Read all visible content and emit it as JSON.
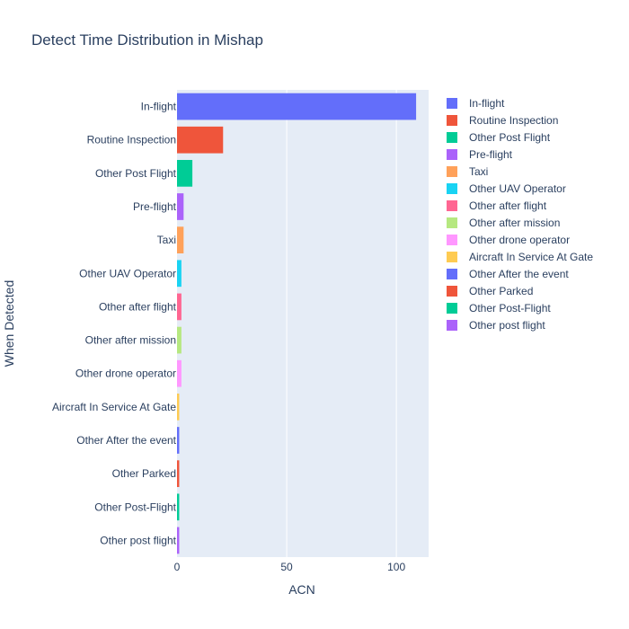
{
  "chart_data": {
    "type": "bar",
    "orientation": "horizontal",
    "title": "Detect Time Distribution in Mishap",
    "xlabel": "ACN",
    "ylabel": "When Detected",
    "xlim": [
      0,
      114.7
    ],
    "xticks": [
      0,
      50,
      100
    ],
    "grid": true,
    "legend_position": "right",
    "categories": [
      "In-flight",
      "Routine Inspection",
      "Other Post Flight",
      "Pre-flight",
      "Taxi",
      "Other UAV Operator",
      "Other after flight",
      "Other after mission",
      "Other drone operator",
      "Aircraft In Service At Gate",
      "Other After the event",
      "Other Parked",
      "Other Post-Flight",
      "Other post flight"
    ],
    "values": [
      109,
      21,
      7,
      3,
      3,
      2,
      2,
      2,
      2,
      1,
      1,
      1,
      1,
      1
    ],
    "colors": [
      "#636efa",
      "#EF553B",
      "#00cc96",
      "#ab63fa",
      "#FFA15A",
      "#19d3f3",
      "#FF6692",
      "#B6E880",
      "#FF97FF",
      "#FECB52",
      "#636efa",
      "#EF553B",
      "#00cc96",
      "#ab63fa"
    ],
    "plot_bgcolor": "#e5ecf6",
    "text_color": "#2a3f5f"
  }
}
